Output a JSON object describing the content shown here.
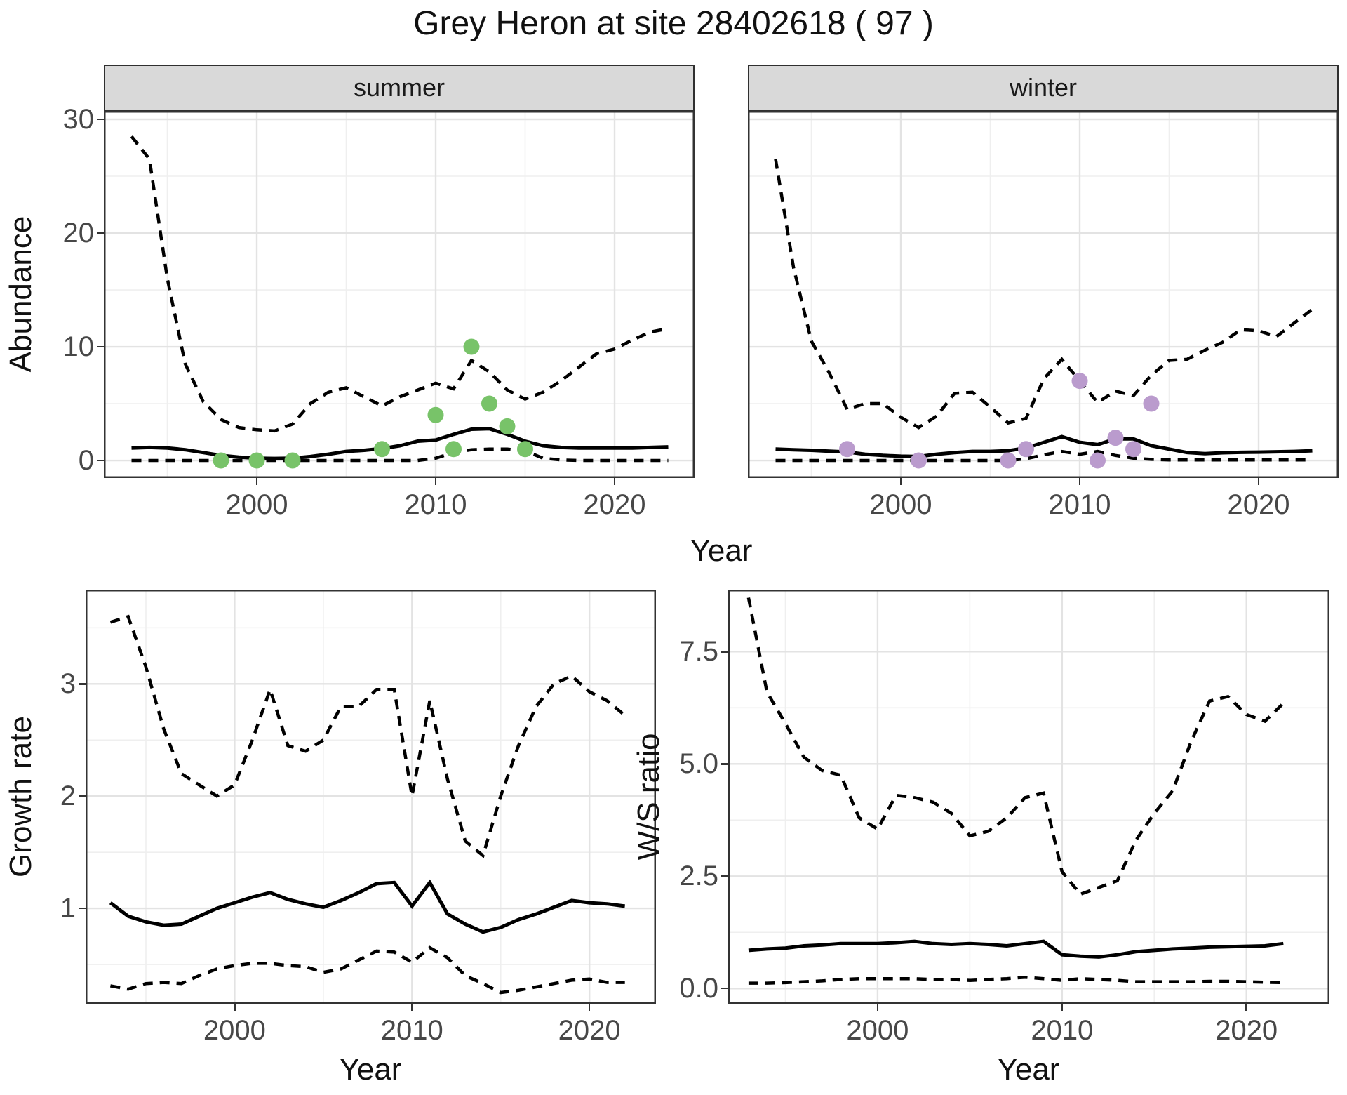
{
  "title": "Grey Heron at site 28402618 ( 97 )",
  "style": {
    "point_green": "#78c369",
    "point_purple": "#ba9bcd",
    "strip_bg": "#d9d9d9",
    "grid_major": "#e3e3e3",
    "grid_minor": "#efefef",
    "panel_border": "#333333",
    "tick_color": "#333333",
    "title_color": "#111111",
    "axis_text_color": "#474747",
    "line_color": "#000000"
  },
  "chart_data": [
    {
      "id": "abundance-summer",
      "type": "line",
      "facet_label": "summer",
      "xlabel": "Year",
      "ylabel": "Abundance",
      "xlim": [
        1991.45,
        2024.47
      ],
      "ylim": [
        -1.54,
        30.74
      ],
      "xticks": {
        "values": [
          2000,
          2010,
          2020
        ],
        "labels": [
          "2000",
          "2010",
          "2020"
        ]
      },
      "yticks": {
        "values": [
          0,
          10,
          20,
          30
        ],
        "labels": [
          "0",
          "10",
          "20",
          "30"
        ]
      },
      "minor_x": [
        1995,
        2005,
        2015
      ],
      "minor_y": [
        5,
        15,
        25
      ],
      "grid": true,
      "legend": "none",
      "series": [
        {
          "name": "upper-credible-interval",
          "style": "dashed",
          "x": [
            1993,
            1994,
            1995,
            1996,
            1997,
            1998,
            1999,
            2000,
            2001,
            2002,
            2003,
            2004,
            2005,
            2006,
            2007,
            2008,
            2009,
            2010,
            2011,
            2012,
            2013,
            2014,
            2015,
            2016,
            2017,
            2018,
            2019,
            2020,
            2021,
            2022,
            2023
          ],
          "y": [
            28.5,
            26.5,
            16,
            8.5,
            5.2,
            3.6,
            2.9,
            2.7,
            2.6,
            3.2,
            5.0,
            6.0,
            6.4,
            5.6,
            4.8,
            5.6,
            6.2,
            6.8,
            6.3,
            8.8,
            7.8,
            6.2,
            5.4,
            6.0,
            7.0,
            8.2,
            9.4,
            9.8,
            10.6,
            11.3,
            11.6
          ]
        },
        {
          "name": "median-abundance",
          "style": "solid",
          "x": [
            1993,
            1994,
            1995,
            1996,
            1997,
            1998,
            1999,
            2000,
            2001,
            2002,
            2003,
            2004,
            2005,
            2006,
            2007,
            2008,
            2009,
            2010,
            2011,
            2012,
            2013,
            2014,
            2015,
            2016,
            2017,
            2018,
            2019,
            2020,
            2021,
            2022,
            2023
          ],
          "y": [
            1.1,
            1.15,
            1.1,
            0.95,
            0.7,
            0.45,
            0.3,
            0.2,
            0.18,
            0.2,
            0.35,
            0.55,
            0.8,
            0.9,
            1.05,
            1.3,
            1.7,
            1.8,
            2.3,
            2.75,
            2.8,
            2.3,
            1.7,
            1.3,
            1.15,
            1.1,
            1.1,
            1.1,
            1.1,
            1.15,
            1.2
          ]
        },
        {
          "name": "lower-credible-interval",
          "style": "dashed",
          "x": [
            1993,
            1994,
            1995,
            1996,
            1997,
            1998,
            1999,
            2000,
            2001,
            2002,
            2003,
            2004,
            2005,
            2006,
            2007,
            2008,
            2009,
            2010,
            2011,
            2012,
            2013,
            2014,
            2015,
            2016,
            2017,
            2018,
            2019,
            2020,
            2021,
            2022,
            2023
          ],
          "y": [
            0,
            0,
            0,
            0,
            0,
            0,
            0,
            0,
            0,
            0,
            0,
            0,
            0,
            0,
            0,
            0,
            0,
            0.2,
            0.7,
            0.95,
            1.0,
            1.0,
            0.85,
            0.2,
            0.05,
            0,
            0,
            0,
            0,
            0,
            0
          ]
        }
      ],
      "points": {
        "name": "observed-counts-summer",
        "color": "#78c369",
        "x": [
          1998,
          2000,
          2002,
          2007,
          2010,
          2011,
          2012,
          2013,
          2014,
          2015
        ],
        "y": [
          0,
          0,
          0,
          1,
          4,
          1,
          10,
          5,
          3,
          1
        ]
      }
    },
    {
      "id": "abundance-winter",
      "type": "line",
      "facet_label": "winter",
      "xlabel": "Year",
      "ylabel": "Abundance",
      "xlim": [
        1991.45,
        2024.47
      ],
      "ylim": [
        -1.54,
        30.74
      ],
      "xticks": {
        "values": [
          2000,
          2010,
          2020
        ],
        "labels": [
          "2000",
          "2010",
          "2020"
        ]
      },
      "yticks": {
        "values": [
          0,
          10,
          20,
          30
        ],
        "labels": [
          "0",
          "10",
          "20",
          "30"
        ]
      },
      "minor_x": [
        1995,
        2005,
        2015
      ],
      "minor_y": [
        5,
        15,
        25
      ],
      "grid": true,
      "legend": "none",
      "series": [
        {
          "name": "upper-credible-interval",
          "style": "dashed",
          "x": [
            1993,
            1994,
            1995,
            1996,
            1997,
            1998,
            1999,
            2000,
            2001,
            2002,
            2003,
            2004,
            2005,
            2006,
            2007,
            2008,
            2009,
            2010,
            2011,
            2012,
            2013,
            2014,
            2015,
            2016,
            2017,
            2018,
            2019,
            2020,
            2021,
            2022,
            2023
          ],
          "y": [
            26.5,
            17,
            10.5,
            7.7,
            4.5,
            5.0,
            5.0,
            3.8,
            2.9,
            3.9,
            5.9,
            6.0,
            4.7,
            3.3,
            3.7,
            7.2,
            8.9,
            7.0,
            5.1,
            6.1,
            5.7,
            7.5,
            8.8,
            8.9,
            9.7,
            10.4,
            11.5,
            11.4,
            10.9,
            12.1,
            13.3
          ]
        },
        {
          "name": "median-abundance",
          "style": "solid",
          "x": [
            1993,
            1994,
            1995,
            1996,
            1997,
            1998,
            1999,
            2000,
            2001,
            2002,
            2003,
            2004,
            2005,
            2006,
            2007,
            2008,
            2009,
            2010,
            2011,
            2012,
            2013,
            2014,
            2015,
            2016,
            2017,
            2018,
            2019,
            2020,
            2021,
            2022,
            2023
          ],
          "y": [
            1.0,
            0.95,
            0.9,
            0.82,
            0.75,
            0.55,
            0.45,
            0.38,
            0.35,
            0.55,
            0.7,
            0.8,
            0.8,
            0.86,
            1.1,
            1.6,
            2.1,
            1.6,
            1.4,
            1.9,
            1.9,
            1.3,
            1.0,
            0.7,
            0.6,
            0.68,
            0.72,
            0.74,
            0.77,
            0.8,
            0.86
          ]
        },
        {
          "name": "lower-credible-interval",
          "style": "dashed",
          "x": [
            1993,
            1994,
            1995,
            1996,
            1997,
            1998,
            1999,
            2000,
            2001,
            2002,
            2003,
            2004,
            2005,
            2006,
            2007,
            2008,
            2009,
            2010,
            2011,
            2012,
            2013,
            2014,
            2015,
            2016,
            2017,
            2018,
            2019,
            2020,
            2021,
            2022,
            2023
          ],
          "y": [
            0,
            0,
            0,
            0,
            0,
            0,
            0,
            0,
            0,
            0,
            0,
            0,
            0,
            0,
            0.15,
            0.5,
            0.8,
            0.55,
            0.8,
            0.45,
            0.2,
            0.1,
            0.05,
            0.05,
            0.05,
            0.05,
            0.05,
            0.05,
            0.05,
            0.05,
            0.05
          ]
        }
      ],
      "points": {
        "name": "observed-counts-winter",
        "color": "#ba9bcd",
        "x": [
          1997,
          2001,
          2006,
          2007,
          2010,
          2011,
          2012,
          2013,
          2014
        ],
        "y": [
          1,
          0,
          0,
          1,
          7,
          0,
          2,
          1,
          5
        ]
      }
    },
    {
      "id": "growth-rate",
      "type": "line",
      "facet_label": "",
      "xlabel": "Year",
      "ylabel": "Growth rate",
      "xlim": [
        1991.6,
        2023.75
      ],
      "ylim": [
        0.15,
        3.84
      ],
      "xticks": {
        "values": [
          2000,
          2010,
          2020
        ],
        "labels": [
          "2000",
          "2010",
          "2020"
        ]
      },
      "yticks": {
        "values": [
          1,
          2,
          3
        ],
        "labels": [
          "1",
          "2",
          "3"
        ]
      },
      "minor_x": [
        1995,
        2005,
        2015
      ],
      "minor_y": [
        0.5,
        1.5,
        2.5,
        3.5
      ],
      "grid": true,
      "legend": "none",
      "series": [
        {
          "name": "upper-credible-interval",
          "style": "dashed",
          "x": [
            1993,
            1994,
            1995,
            1996,
            1997,
            1998,
            1999,
            2000,
            2001,
            2002,
            2003,
            2004,
            2005,
            2006,
            2007,
            2008,
            2009,
            2010,
            2011,
            2012,
            2013,
            2014,
            2015,
            2016,
            2017,
            2018,
            2019,
            2020,
            2021,
            2022
          ],
          "y": [
            3.55,
            3.6,
            3.15,
            2.6,
            2.2,
            2.1,
            2.0,
            2.1,
            2.5,
            2.95,
            2.45,
            2.4,
            2.5,
            2.8,
            2.8,
            2.95,
            2.95,
            2.0,
            2.85,
            2.15,
            1.6,
            1.47,
            2.0,
            2.45,
            2.8,
            3.0,
            3.07,
            2.93,
            2.85,
            2.72
          ]
        },
        {
          "name": "median-growth-rate",
          "style": "solid",
          "x": [
            1993,
            1994,
            1995,
            1996,
            1997,
            1998,
            1999,
            2000,
            2001,
            2002,
            2003,
            2004,
            2005,
            2006,
            2007,
            2008,
            2009,
            2010,
            2011,
            2012,
            2013,
            2014,
            2015,
            2016,
            2017,
            2018,
            2019,
            2020,
            2021,
            2022
          ],
          "y": [
            1.05,
            0.93,
            0.88,
            0.85,
            0.86,
            0.93,
            1.0,
            1.05,
            1.1,
            1.14,
            1.08,
            1.04,
            1.01,
            1.07,
            1.14,
            1.22,
            1.23,
            1.02,
            1.23,
            0.95,
            0.86,
            0.79,
            0.83,
            0.9,
            0.95,
            1.01,
            1.07,
            1.05,
            1.04,
            1.02
          ]
        },
        {
          "name": "lower-credible-interval",
          "style": "dashed",
          "x": [
            1993,
            1994,
            1995,
            1996,
            1997,
            1998,
            1999,
            2000,
            2001,
            2002,
            2003,
            2004,
            2005,
            2006,
            2007,
            2008,
            2009,
            2010,
            2011,
            2012,
            2013,
            2014,
            2015,
            2016,
            2017,
            2018,
            2019,
            2020,
            2021,
            2022
          ],
          "y": [
            0.31,
            0.28,
            0.33,
            0.34,
            0.33,
            0.4,
            0.46,
            0.49,
            0.51,
            0.51,
            0.49,
            0.48,
            0.43,
            0.46,
            0.54,
            0.62,
            0.61,
            0.52,
            0.65,
            0.56,
            0.4,
            0.33,
            0.25,
            0.27,
            0.3,
            0.33,
            0.36,
            0.37,
            0.34,
            0.34
          ]
        }
      ]
    },
    {
      "id": "ws-ratio",
      "type": "line",
      "facet_label": "",
      "xlabel": "Year",
      "ylabel": "W/S ratio",
      "xlim": [
        1991.9,
        2024.5
      ],
      "ylim": [
        -0.34,
        8.88
      ],
      "xticks": {
        "values": [
          2000,
          2010,
          2020
        ],
        "labels": [
          "2000",
          "2010",
          "2020"
        ]
      },
      "yticks": {
        "values": [
          0,
          2.5,
          5,
          7.5
        ],
        "labels": [
          "0.0",
          "2.5",
          "5.0",
          "7.5"
        ]
      },
      "minor_x": [
        1995,
        2005,
        2015
      ],
      "minor_y": [
        1.25,
        3.75,
        6.25
      ],
      "grid": true,
      "legend": "none",
      "series": [
        {
          "name": "upper-credible-interval",
          "style": "dashed",
          "x": [
            1993,
            1994,
            1995,
            1996,
            1997,
            1998,
            1999,
            2000,
            2001,
            2002,
            2003,
            2004,
            2005,
            2006,
            2007,
            2008,
            2009,
            2010,
            2011,
            2012,
            2013,
            2014,
            2015,
            2016,
            2017,
            2018,
            2019,
            2020,
            2021,
            2022
          ],
          "y": [
            8.7,
            6.6,
            5.9,
            5.15,
            4.85,
            4.75,
            3.8,
            3.55,
            4.3,
            4.25,
            4.15,
            3.9,
            3.4,
            3.5,
            3.8,
            4.25,
            4.35,
            2.6,
            2.1,
            2.25,
            2.4,
            3.3,
            3.9,
            4.4,
            5.5,
            6.4,
            6.5,
            6.1,
            5.95,
            6.35
          ]
        },
        {
          "name": "median-ws-ratio",
          "style": "solid",
          "x": [
            1993,
            1994,
            1995,
            1996,
            1997,
            1998,
            1999,
            2000,
            2001,
            2002,
            2003,
            2004,
            2005,
            2006,
            2007,
            2008,
            2009,
            2010,
            2011,
            2012,
            2013,
            2014,
            2015,
            2016,
            2017,
            2018,
            2019,
            2020,
            2021,
            2022
          ],
          "y": [
            0.85,
            0.88,
            0.9,
            0.95,
            0.97,
            1.0,
            1.0,
            1.0,
            1.02,
            1.05,
            1.0,
            0.98,
            1.0,
            0.98,
            0.95,
            1.0,
            1.05,
            0.75,
            0.72,
            0.7,
            0.75,
            0.82,
            0.85,
            0.88,
            0.9,
            0.92,
            0.93,
            0.94,
            0.95,
            1.0
          ]
        },
        {
          "name": "lower-credible-interval",
          "style": "dashed",
          "x": [
            1993,
            1994,
            1995,
            1996,
            1997,
            1998,
            1999,
            2000,
            2001,
            2002,
            2003,
            2004,
            2005,
            2006,
            2007,
            2008,
            2009,
            2010,
            2011,
            2012,
            2013,
            2014,
            2015,
            2016,
            2017,
            2018,
            2019,
            2020,
            2021,
            2022
          ],
          "y": [
            0.12,
            0.12,
            0.13,
            0.15,
            0.17,
            0.2,
            0.22,
            0.22,
            0.22,
            0.22,
            0.2,
            0.2,
            0.18,
            0.2,
            0.22,
            0.25,
            0.22,
            0.18,
            0.22,
            0.2,
            0.18,
            0.15,
            0.15,
            0.15,
            0.15,
            0.16,
            0.16,
            0.15,
            0.14,
            0.13
          ]
        }
      ]
    }
  ]
}
